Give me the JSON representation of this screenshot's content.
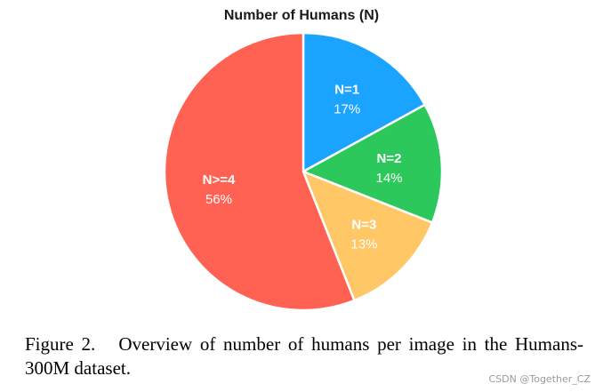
{
  "chart_data": {
    "type": "pie",
    "title": "Number of Humans (N)",
    "slices": [
      {
        "label": "N=1",
        "value": 17,
        "value_label": "17%",
        "color": "#1AA3FF"
      },
      {
        "label": "N=2",
        "value": 14,
        "value_label": "14%",
        "color": "#2DC85C"
      },
      {
        "label": "N=3",
        "value": 13,
        "value_label": "13%",
        "color": "#FFC766"
      },
      {
        "label": "N>=4",
        "value": 56,
        "value_label": "56%",
        "color": "#FF6152"
      }
    ],
    "start": "12 o'clock",
    "direction": "clockwise"
  },
  "caption": {
    "text": "Figure 2.   Overview of number of humans per image in the Humans-300M dataset."
  },
  "watermark": {
    "text": "CSDN @Together_CZ"
  }
}
